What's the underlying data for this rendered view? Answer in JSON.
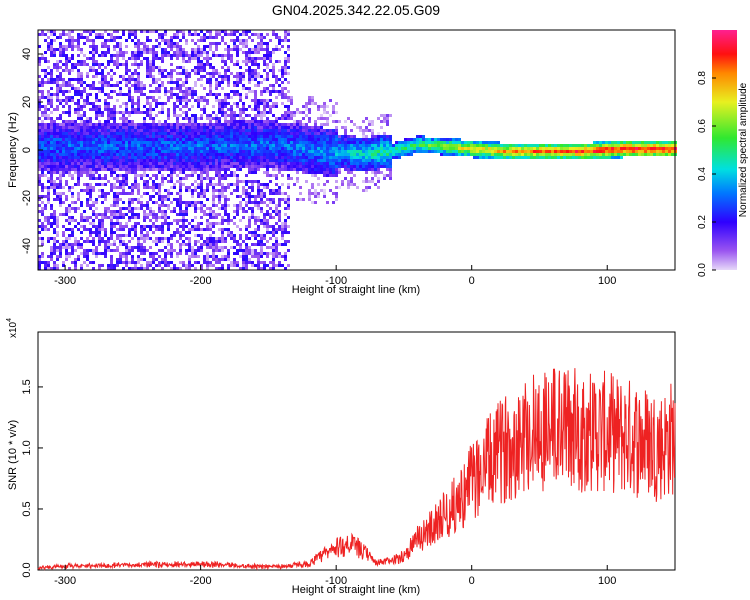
{
  "figure_title": "GN04.2025.342.22.05.G09",
  "colors": {
    "snr_line": "#ee2222",
    "frame": "#000000",
    "background": "#ffffff"
  },
  "chart_data": [
    {
      "type": "heatmap",
      "xlabel": "Height of straight line (km)",
      "ylabel": "Frequency (Hz)",
      "xlim": [
        -320,
        150
      ],
      "ylim": [
        -50,
        50
      ],
      "x_ticks": [
        -300,
        -200,
        -100,
        0,
        100
      ],
      "y_ticks": [
        -40,
        -20,
        0,
        20,
        40
      ],
      "colormap": "rainbow (violet to red)",
      "colorbar": {
        "label": "Normalized spectral amplitude",
        "range": [
          0,
          1
        ],
        "ticks": [
          "0.0",
          "0.2",
          "0.4",
          "0.6",
          "0.8"
        ]
      },
      "description_points": {
        "band_center_hz": [
          [
            -210,
            2
          ],
          [
            -150,
            3
          ],
          [
            -110,
            0
          ],
          [
            -80,
            -1
          ],
          [
            -60,
            0
          ],
          [
            -40,
            3
          ],
          [
            -20,
            2
          ],
          [
            0,
            1
          ],
          [
            25,
            0
          ],
          [
            50,
            0
          ],
          [
            80,
            0
          ],
          [
            110,
            1
          ],
          [
            150,
            1
          ]
        ],
        "band_amplitude": [
          [
            -210,
            0.3
          ],
          [
            -150,
            0.3
          ],
          [
            -110,
            0.35
          ],
          [
            -80,
            0.45
          ],
          [
            -60,
            0.5
          ],
          [
            -40,
            0.55
          ],
          [
            -20,
            0.65
          ],
          [
            0,
            0.75
          ],
          [
            25,
            0.8
          ],
          [
            50,
            0.85
          ],
          [
            80,
            0.9
          ],
          [
            110,
            0.95
          ],
          [
            150,
            0.95
          ]
        ]
      }
    },
    {
      "type": "line",
      "xlabel": "Height of straight line (km)",
      "ylabel": "SNR (10 * v/v)",
      "y_multiplier": "(x10^4)",
      "multiplier_base": "x10",
      "multiplier_exp": "4",
      "xlim": [
        -320,
        150
      ],
      "ylim": [
        0,
        1.95
      ],
      "x_ticks": [
        -300,
        -200,
        -100,
        0,
        100
      ],
      "y_ticks": [
        "0.0",
        "0.5",
        "1.0",
        "1.5"
      ],
      "series": [
        {
          "x": [
            -320,
            -300,
            -250,
            -200,
            -160,
            -140,
            -120,
            -110,
            -100,
            -90,
            -80,
            -70,
            -60,
            -50,
            -40,
            -30,
            -20,
            -10,
            0,
            10,
            20,
            30,
            40,
            50,
            60,
            70,
            80,
            90,
            100,
            110,
            120,
            130,
            140,
            150
          ],
          "y": [
            0.02,
            0.03,
            0.04,
            0.05,
            0.03,
            0.03,
            0.05,
            0.12,
            0.18,
            0.22,
            0.15,
            0.06,
            0.07,
            0.12,
            0.25,
            0.35,
            0.45,
            0.55,
            0.72,
            0.85,
            0.95,
            1.05,
            1.12,
            1.15,
            1.18,
            1.16,
            1.15,
            1.14,
            1.12,
            1.1,
            1.08,
            1.05,
            1.02,
            1.1
          ]
        }
      ]
    }
  ]
}
